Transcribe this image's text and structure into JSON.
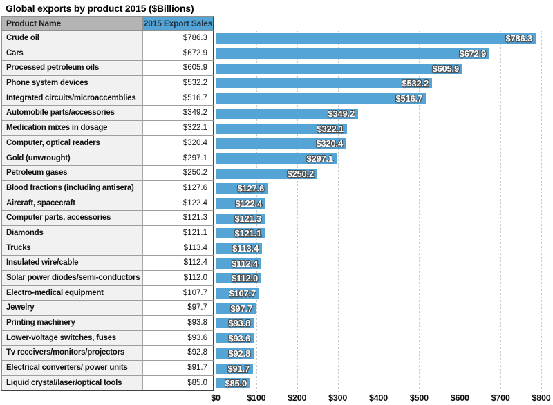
{
  "title": "Global exports by product 2015 ($Billions)",
  "table": {
    "headers": [
      "Product Name",
      "2015 Export Sales"
    ]
  },
  "chart_data": {
    "type": "bar",
    "orientation": "horizontal",
    "title": "Global exports by product 2015 ($Billions)",
    "xlabel": "",
    "ylabel": "Product Name",
    "xlim": [
      0,
      800
    ],
    "grid": "vertical dotted gridlines every $100",
    "legend": "none",
    "bar_color": "#54a4d6",
    "header_blue": "#54a4d6",
    "header_gray": "#b4b4b4",
    "categories": [
      "Crude oil",
      "Cars",
      "Processed petroleum oils",
      "Phone system devices",
      "Integrated circuits/microaccemblies",
      "Automobile parts/accessories",
      "Medication mixes in dosage",
      "Computer, optical readers",
      "Gold (unwrought)",
      "Petroleum gases",
      "Blood fractions (including antisera)",
      "Aircraft, spacecraft",
      "Computer parts, accessories",
      "Diamonds",
      "Trucks",
      "Insulated wire/cable",
      "Solar power diodes/semi-conductors",
      "Electro-medical equipment",
      "Jewelry",
      "Printing machinery",
      "Lower-voltage switches, fuses",
      "Tv receivers/monitors/projectors",
      "Electrical converters/ power units",
      "Liquid crystal/laser/optical tools"
    ],
    "values": [
      786.3,
      672.9,
      605.9,
      532.2,
      516.7,
      349.2,
      322.1,
      320.4,
      297.1,
      250.2,
      127.6,
      122.4,
      121.3,
      121.1,
      113.4,
      112.4,
      112.0,
      107.7,
      97.7,
      93.8,
      93.6,
      92.8,
      91.7,
      85.0
    ],
    "value_labels": [
      "$786.3",
      "$672.9",
      "$605.9",
      "$532.2",
      "$516.7",
      "$349.2",
      "$322.1",
      "$320.4",
      "$297.1",
      "$250.2",
      "$127.6",
      "$122.4",
      "$121.3",
      "$121.1",
      "$113.4",
      "$112.4",
      "$112.0",
      "$107.7",
      "$97.7",
      "$93.8",
      "$93.6",
      "$92.8",
      "$91.7",
      "$85.0"
    ],
    "x_ticks": [
      {
        "label": "$0",
        "value": 0
      },
      {
        "label": "$100",
        "value": 100
      },
      {
        "label": "$200",
        "value": 200
      },
      {
        "label": "$300",
        "value": 300
      },
      {
        "label": "$400",
        "value": 400
      },
      {
        "label": "$500",
        "value": 500
      },
      {
        "label": "$600",
        "value": 600
      },
      {
        "label": "$700",
        "value": 700
      },
      {
        "label": "$800",
        "value": 800
      }
    ]
  }
}
